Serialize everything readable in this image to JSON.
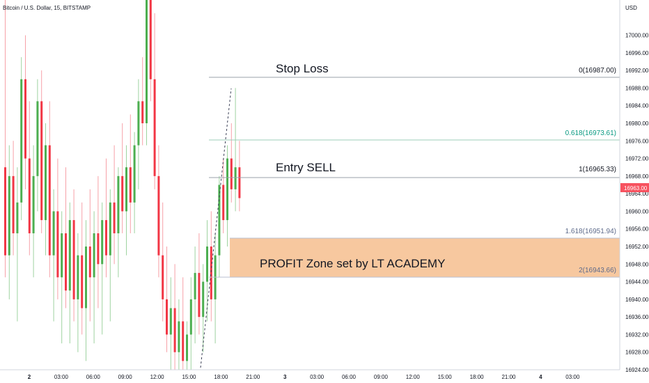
{
  "chart_data": {
    "type": "candlestick",
    "title": "Bitcoin / U.S. Dollar, 15, BITSTAMP",
    "y_unit": "USD",
    "ylim": [
      16924,
      17008
    ],
    "y_ticks": [
      "17000.00",
      "16996.00",
      "16992.00",
      "16988.00",
      "16984.00",
      "16980.00",
      "16976.00",
      "16972.00",
      "16968.00",
      "16964.00",
      "16960.00",
      "16956.00",
      "16952.00",
      "16948.00",
      "16944.00",
      "16940.00",
      "16936.00",
      "16932.00",
      "16928.00",
      "16924.00"
    ],
    "x_ticks": [
      "2",
      "03:00",
      "06:00",
      "09:00",
      "12:00",
      "15:00",
      "18:00",
      "21:00",
      "3",
      "03:00",
      "06:00",
      "09:00",
      "12:00",
      "15:00",
      "18:00",
      "21:00",
      "4",
      "03:00"
    ],
    "current_price": "16963.00",
    "fib_levels": [
      {
        "label": "0(16987.00)",
        "value": 16987.0,
        "color": "#131722"
      },
      {
        "label": "0.618(16973.61)",
        "value": 16973.61,
        "color": "#089981"
      },
      {
        "label": "1(16965.33)",
        "value": 16965.33,
        "color": "#131722"
      },
      {
        "label": "1.618(16951.94)",
        "value": 16951.94,
        "color": "#5d6a8a"
      },
      {
        "label": "2(16943.66)",
        "value": 16943.66,
        "color": "#5d6a8a"
      }
    ],
    "annotations": [
      "Stop Loss",
      "Entry SELL",
      "PROFIT Zone set by LT ACADEMY"
    ],
    "trend_line": {
      "from": 16922,
      "to": 16985
    },
    "candles": [
      [
        16970,
        17008,
        16945,
        16950
      ],
      [
        16950,
        16975,
        16940,
        16968
      ],
      [
        16968,
        16976,
        16950,
        16955
      ],
      [
        16955,
        16970,
        16935,
        16962
      ],
      [
        16962,
        16995,
        16958,
        16990
      ],
      [
        16990,
        17000,
        16965,
        16972
      ],
      [
        16972,
        16985,
        16950,
        16955
      ],
      [
        16955,
        16975,
        16945,
        16968
      ],
      [
        16968,
        16990,
        16960,
        16985
      ],
      [
        16985,
        16992,
        16955,
        16958
      ],
      [
        16958,
        16980,
        16950,
        16975
      ],
      [
        16975,
        16985,
        16945,
        16950
      ],
      [
        16950,
        16965,
        16935,
        16960
      ],
      [
        16960,
        16972,
        16940,
        16945
      ],
      [
        16945,
        16960,
        16930,
        16955
      ],
      [
        16955,
        16970,
        16938,
        16942
      ],
      [
        16942,
        16962,
        16930,
        16958
      ],
      [
        16958,
        16965,
        16935,
        16940
      ],
      [
        16940,
        16955,
        16928,
        16950
      ],
      [
        16950,
        16962,
        16932,
        16938
      ],
      [
        16938,
        16958,
        16926,
        16952
      ],
      [
        16952,
        16965,
        16935,
        16945
      ],
      [
        16945,
        16960,
        16930,
        16955
      ],
      [
        16955,
        16968,
        16938,
        16948
      ],
      [
        16948,
        16962,
        16932,
        16958
      ],
      [
        16958,
        16972,
        16945,
        16950
      ],
      [
        16950,
        16965,
        16935,
        16962
      ],
      [
        16962,
        16975,
        16948,
        16955
      ],
      [
        16955,
        16970,
        16945,
        16968
      ],
      [
        16968,
        16980,
        16955,
        16960
      ],
      [
        16960,
        16975,
        16950,
        16970
      ],
      [
        16970,
        16982,
        16955,
        16962
      ],
      [
        16962,
        16978,
        16955,
        16975
      ],
      [
        16975,
        16990,
        16965,
        16985
      ],
      [
        16985,
        16995,
        16975,
        16980
      ],
      [
        16980,
        17008,
        16975,
        17008
      ],
      [
        17008,
        17010,
        16985,
        16990
      ],
      [
        16990,
        17005,
        16965,
        16968
      ],
      [
        16968,
        16975,
        16945,
        16950
      ],
      [
        16950,
        16962,
        16935,
        16940
      ],
      [
        16940,
        16952,
        16928,
        16932
      ],
      [
        16932,
        16945,
        16924,
        16938
      ],
      [
        16938,
        16948,
        16924,
        16928
      ],
      [
        16928,
        16940,
        16924,
        16935
      ],
      [
        16935,
        16945,
        16924,
        16926
      ],
      [
        16926,
        16935,
        16924,
        16932
      ],
      [
        16932,
        16945,
        16924,
        16940
      ],
      [
        16940,
        16952,
        16930,
        16946
      ],
      [
        16946,
        16955,
        16932,
        16936
      ],
      [
        16936,
        16948,
        16928,
        16944
      ],
      [
        16944,
        16958,
        16935,
        16952
      ],
      [
        16952,
        16960,
        16935,
        16940
      ],
      [
        16940,
        16955,
        16930,
        16950
      ],
      [
        16950,
        16968,
        16945,
        16966
      ],
      [
        16966,
        16972,
        16955,
        16958
      ],
      [
        16958,
        16975,
        16952,
        16972
      ],
      [
        16972,
        16980,
        16962,
        16965
      ],
      [
        16965,
        16988,
        16960,
        16970
      ],
      [
        16970,
        16976,
        16960,
        16963
      ]
    ]
  }
}
